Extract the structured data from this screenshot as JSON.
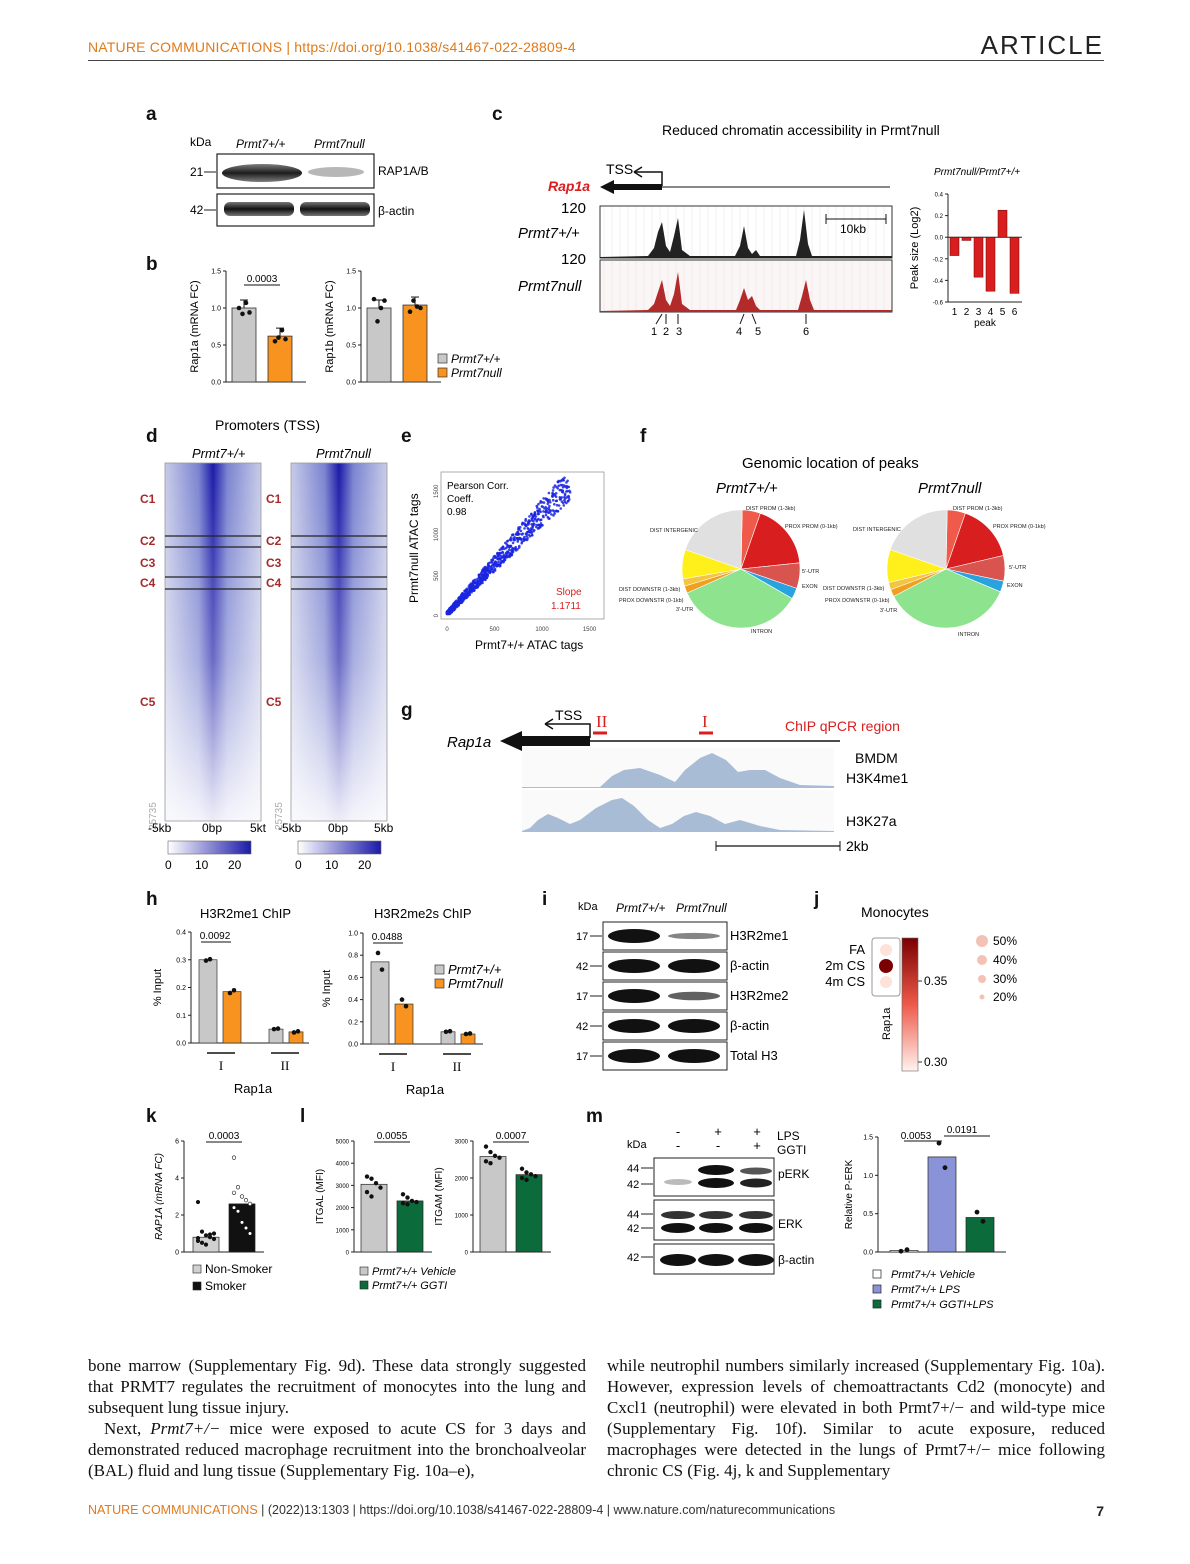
{
  "header": {
    "journal_doi": "NATURE COMMUNICATIONS | https://doi.org/10.1038/s41467-022-28809-4",
    "section": "ARTICLE"
  },
  "panel_labels": [
    "a",
    "b",
    "c",
    "d",
    "e",
    "f",
    "g",
    "h",
    "i",
    "j",
    "k",
    "l",
    "m"
  ],
  "panel_a": {
    "kda_label": "kDa",
    "lanes": [
      "Prmt7+/+",
      "Prmt7null"
    ],
    "bands": [
      {
        "kda": "21",
        "label": "RAP1A/B"
      },
      {
        "kda": "42",
        "label": "β-actin"
      }
    ]
  },
  "panel_c": {
    "title": "Reduced chromatin accessibility in Prmt7null",
    "tss": "TSS",
    "gene": "Rap1a",
    "track_max": "120",
    "tracks": [
      "Prmt7+/+",
      "Prmt7null"
    ],
    "scale": "10kb",
    "peak_labels": [
      "1",
      "2",
      "3",
      "4",
      "5",
      "6"
    ]
  },
  "panel_d": {
    "title": "Promoters (TSS)",
    "cols": [
      "Prmt7+/+",
      "Prmt7null"
    ],
    "clusters": [
      "C1",
      "C2",
      "C3",
      "C4",
      "C5"
    ],
    "n_rows": "25735",
    "xticks": [
      "-5kb",
      "0bp",
      "5kt",
      "-5kb",
      "0bp",
      "5kb"
    ],
    "cbar_ticks": [
      "0",
      "10",
      "20"
    ]
  },
  "panel_e": {
    "annot": [
      "Pearson Corr.",
      "Coeff.",
      "0.98"
    ],
    "slope": [
      "Slope",
      "1.1711"
    ],
    "xlabel": "Prmt7+/+ ATAC tags",
    "ylabel": "Prmt7null ATAC tags"
  },
  "panel_f": {
    "title": "Genomic location of peaks",
    "pies": [
      "Prmt7+/+",
      "Prmt7null"
    ],
    "categories": [
      "DIST PROM (1-3kb)",
      "PROX PROM (0-1kb)",
      "5'-UTR",
      "EXON",
      "INTRON",
      "3'-UTR",
      "PROX DOWNSTR (0-1kb)",
      "DIST DOWNSTR (1-3kb)",
      "DIST INTERGENIC"
    ]
  },
  "panel_g": {
    "tss": "TSS",
    "gene": "Rap1a",
    "regions": [
      "II",
      "I"
    ],
    "chip_label": "ChIP qPCR region",
    "cell": "BMDM",
    "marks": [
      "H3K4me1",
      "H3K27a"
    ],
    "scale": "2kb"
  },
  "panel_i": {
    "kda_label": "kDa",
    "lanes": [
      "Prmt7+/+",
      "Prmt7null"
    ],
    "bands": [
      {
        "kda": "17",
        "label": "H3R2me1"
      },
      {
        "kda": "42",
        "label": "β-actin"
      },
      {
        "kda": "17",
        "label": "H3R2me2"
      },
      {
        "kda": "42",
        "label": "β-actin"
      },
      {
        "kda": "17",
        "label": "Total H3"
      }
    ]
  },
  "panel_j": {
    "title": "Monocytes",
    "rows": [
      "FA",
      "2m CS",
      "4m CS"
    ],
    "col": "Rap1a",
    "cbar_ticks": [
      "0.35",
      "0.30"
    ],
    "size_legend": [
      "50%",
      "40%",
      "30%",
      "20%"
    ]
  },
  "panel_m": {
    "kda_label": "kDa",
    "treat_rows": [
      {
        "label": "LPS",
        "vals": [
          "-",
          "+",
          "+"
        ]
      },
      {
        "label": "GGTI",
        "vals": [
          "-",
          "-",
          "+"
        ]
      }
    ],
    "blot_labels": [
      "pERK",
      "ERK",
      "β-actin"
    ],
    "kda_ticks": [
      "44",
      "42",
      "44",
      "42",
      "42"
    ]
  },
  "chart_data": [
    {
      "type": "bar",
      "id": "b1",
      "categories": [
        "Prmt7+/+",
        "Prmt7null"
      ],
      "values": [
        1.0,
        0.62
      ],
      "points": [
        [
          1.0,
          0.92,
          1.07,
          0.94
        ],
        [
          0.55,
          0.6,
          0.7,
          0.58
        ]
      ],
      "ylabel": "Rap1a (mRNA FC)",
      "ylim": [
        0,
        1.5
      ],
      "yticks": [
        0,
        0.5,
        1.0,
        1.5
      ],
      "pvalue": "0.0003"
    },
    {
      "type": "bar",
      "id": "b2",
      "categories": [
        "Prmt7+/+",
        "Prmt7null"
      ],
      "values": [
        1.0,
        1.04
      ],
      "points": [
        [
          1.12,
          0.82,
          1.0,
          1.1
        ],
        [
          0.95,
          1.1,
          1.02,
          1.0
        ]
      ],
      "ylabel": "Rap1b (mRNA FC)",
      "ylim": [
        0,
        1.5
      ],
      "yticks": [
        0,
        0.5,
        1.0,
        1.5
      ],
      "legend": [
        "Prmt7+/+",
        "Prmt7null"
      ]
    },
    {
      "type": "bar",
      "id": "c_bar",
      "categories": [
        "1",
        "2",
        "3",
        "4",
        "5",
        "6"
      ],
      "values": [
        -0.17,
        -0.03,
        -0.37,
        -0.5,
        0.25,
        -0.52
      ],
      "title": "Prmt7null/Prmt7+/+",
      "xlabel": "peak",
      "ylabel": "Peak size (Log2)",
      "ylim": [
        -0.6,
        0.4
      ],
      "yticks": [
        0.4,
        0.2,
        0.0,
        -0.2,
        -0.4,
        -0.6
      ]
    },
    {
      "type": "scatter",
      "id": "e_scatter",
      "xlim": [
        0,
        1600
      ],
      "ylim": [
        0,
        1600
      ],
      "xticks": [
        0,
        500,
        1000,
        1500
      ],
      "yticks": [
        0,
        500,
        1000,
        1500
      ],
      "slope": 1.1711,
      "pearson": 0.98
    },
    {
      "type": "pie",
      "id": "f_pie1",
      "labels": [
        "DIST PROM (1-3kb)",
        "PROX PROM (0-1kb)",
        "5'-UTR",
        "EXON",
        "INTRON",
        "3'-UTR",
        "PROX DOWNSTR (0-1kb)",
        "DIST DOWNSTR (1-3kb)",
        "DIST INTERGENIC"
      ],
      "values": [
        5,
        18,
        7,
        3,
        35,
        2,
        2,
        8,
        20
      ]
    },
    {
      "type": "pie",
      "id": "f_pie2",
      "labels": [
        "DIST PROM (1-3kb)",
        "PROX PROM (0-1kb)",
        "5'-UTR",
        "EXON",
        "INTRON",
        "3'-UTR",
        "PROX DOWNSTR (0-1kb)",
        "DIST DOWNSTR (1-3kb)",
        "DIST INTERGENIC"
      ],
      "values": [
        5,
        16,
        7,
        3,
        36,
        2,
        2,
        9,
        20
      ]
    },
    {
      "type": "bar",
      "id": "h1",
      "title": "H3R2me1 ChIP",
      "groups": [
        "I",
        "II"
      ],
      "group_label": "Rap1a",
      "values": [
        [
          0.3,
          0.185
        ],
        [
          0.05,
          0.04
        ]
      ],
      "points": [
        [
          [
            0.297,
            0.302
          ],
          [
            0.18,
            0.19
          ]
        ],
        [
          [
            0.05,
            0.052
          ],
          [
            0.038,
            0.042
          ]
        ]
      ],
      "ylabel": "% Input",
      "ylim": [
        0,
        0.4
      ],
      "yticks": [
        0,
        0.1,
        0.2,
        0.3,
        0.4
      ],
      "pvalue": "0.0092"
    },
    {
      "type": "bar",
      "id": "h2",
      "title": "H3R2me2s ChIP",
      "groups": [
        "I",
        "II"
      ],
      "group_label": "Rap1a",
      "values": [
        [
          0.74,
          0.36
        ],
        [
          0.11,
          0.09
        ]
      ],
      "points": [
        [
          [
            0.82,
            0.67
          ],
          [
            0.4,
            0.34
          ]
        ],
        [
          [
            0.11,
            0.115
          ],
          [
            0.09,
            0.095
          ]
        ]
      ],
      "ylabel": "% Input",
      "ylim": [
        0,
        1.0
      ],
      "yticks": [
        0,
        0.2,
        0.4,
        0.6,
        0.8,
        1.0
      ],
      "pvalue": "0.0488",
      "legend": [
        "Prmt7+/+",
        "Prmt7null"
      ]
    },
    {
      "type": "bar",
      "id": "k",
      "categories": [
        "Non-Smoker",
        "Smoker"
      ],
      "values": [
        0.8,
        2.6
      ],
      "points": [
        [
          2.7,
          1.1,
          0.9,
          0.8,
          0.7,
          0.6,
          0.5,
          0.4,
          0.95,
          1.0,
          0.75
        ],
        [
          5.1,
          3.5,
          3.0,
          2.8,
          2.6,
          2.4,
          2.2,
          1.6,
          1.3,
          1.0,
          3.2
        ]
      ],
      "ylabel": "RAP1A (mRNA FC)",
      "ylim": [
        0,
        6
      ],
      "yticks": [
        0,
        2,
        4,
        6
      ],
      "pvalue": "0.0003",
      "legend": [
        "Non-Smoker",
        "Smoker"
      ]
    },
    {
      "type": "bar",
      "id": "l1",
      "categories": [
        "Prmt7+/+ Vehicle",
        "Prmt7+/+ GGTI"
      ],
      "values": [
        3050,
        2300
      ],
      "points": [
        [
          3400,
          3300,
          3100,
          2900,
          2700,
          2500
        ],
        [
          2600,
          2450,
          2300,
          2250,
          2200,
          2150
        ]
      ],
      "ylabel": "ITGAL (MFI)",
      "ylim": [
        0,
        5000
      ],
      "yticks": [
        0,
        1000,
        2000,
        3000,
        4000,
        5000
      ],
      "pvalue": "0.0055",
      "legend": [
        "Prmt7+/+ Vehicle",
        "Prmt7+/+ GGTI"
      ]
    },
    {
      "type": "bar",
      "id": "l2",
      "categories": [
        "Prmt7+/+ Vehicle",
        "Prmt7+/+ GGTI"
      ],
      "values": [
        2580,
        2090
      ],
      "points": [
        [
          2850,
          2700,
          2600,
          2550,
          2450,
          2400
        ],
        [
          2250,
          2150,
          2100,
          2050,
          2000,
          1950
        ]
      ],
      "ylabel": "ITGAM (MFI)",
      "ylim": [
        0,
        3000
      ],
      "yticks": [
        0,
        1000,
        2000,
        3000
      ],
      "pvalue": "0.0007"
    },
    {
      "type": "bar",
      "id": "m_bar",
      "categories": [
        "Prmt7+/+ Vehicle",
        "Prmt7+/+ LPS",
        "Prmt7+/+ GGTI+LPS"
      ],
      "values": [
        0.02,
        1.24,
        0.45
      ],
      "points": [
        [
          0.01,
          0.03
        ],
        [
          1.42,
          1.1
        ],
        [
          0.52,
          0.4
        ]
      ],
      "ylabel": "Relative P-ERK",
      "ylim": [
        0,
        1.5
      ],
      "yticks": [
        0,
        0.5,
        1.0,
        1.5
      ],
      "pvalues": [
        "0.0053",
        "0.0191"
      ],
      "legend": [
        "Prmt7+/+ Vehicle",
        "Prmt7+/+ LPS",
        "Prmt7+/+ GGTI+LPS"
      ]
    }
  ],
  "body": {
    "left_p1": "bone marrow (Supplementary Fig. 9d). These data strongly suggested that PRMT7 regulates the recruitment of monocytes into the lung and subsequent lung tissue injury.",
    "left_p2_prefix": "Next, ",
    "left_p2_gene": "Prmt7+/−",
    "left_p2_rest": " mice were exposed to acute CS for 3 days and demonstrated reduced macrophage recruitment into the bronchoalveolar (BAL) fluid and lung tissue (Supplementary Fig. 10a–e),",
    "right_p1": "while neutrophil numbers similarly increased (Supplementary Fig. 10a). However, expression levels of chemoattractants Cd2 (monocyte) and Cxcl1 (neutrophil) were elevated in both Prmt7+/− and wild-type mice (Supplementary Fig. 10f). Similar to acute exposure, reduced macrophages were detected in the lungs of Prmt7+/− mice following chronic CS (Fig. 4j, k and Supplementary"
  },
  "footer": {
    "journal": "NATURE COMMUNICATIONS",
    "citation": " | (2022)13:1303 | https://doi.org/10.1038/s41467-022-28809-4 | www.nature.com/naturecommunications",
    "page": "7"
  },
  "colors": {
    "orange": "#f7931e",
    "gray": "#c8c8c8",
    "green": "#0b6b3a",
    "red": "#d81e1e",
    "lps": "#8b93d8",
    "blue_heat": "#1a1aa8",
    "track_fill": "#a8bcd6"
  }
}
